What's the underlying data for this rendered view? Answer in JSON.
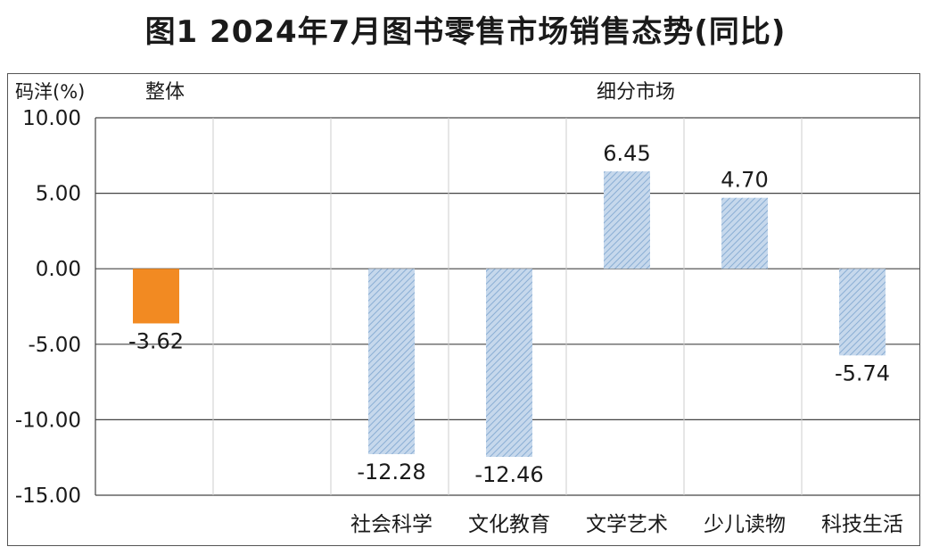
{
  "title": "图1  2024年7月图书零售市场销售态势(同比)",
  "chart_data": {
    "type": "bar",
    "ylabel": "码洋(%)",
    "group_labels": {
      "overall": "整体",
      "segments": "细分市场"
    },
    "categories": [
      "整体",
      "社会科学",
      "文化教育",
      "文学艺术",
      "少儿读物",
      "科技生活"
    ],
    "category_labels_visible": [
      "",
      "社会科学",
      "文化教育",
      "文学艺术",
      "少儿读物",
      "科技生活"
    ],
    "values": [
      -3.62,
      -12.28,
      -12.46,
      6.45,
      4.7,
      -5.74
    ],
    "value_labels": [
      "-3.62",
      "-12.28",
      "-12.46",
      "6.45",
      "4.70",
      "-5.74"
    ],
    "ylim": [
      -15,
      10
    ],
    "yticks": [
      "10.00",
      "5.00",
      "0.00",
      "-5.00",
      "-10.00",
      "-15.00"
    ],
    "grid": true,
    "colors": {
      "overall": "#f28a22",
      "segment_fill": "#c6d8ec",
      "segment_hatch": "#8aaed4",
      "grid": "#444444"
    }
  }
}
